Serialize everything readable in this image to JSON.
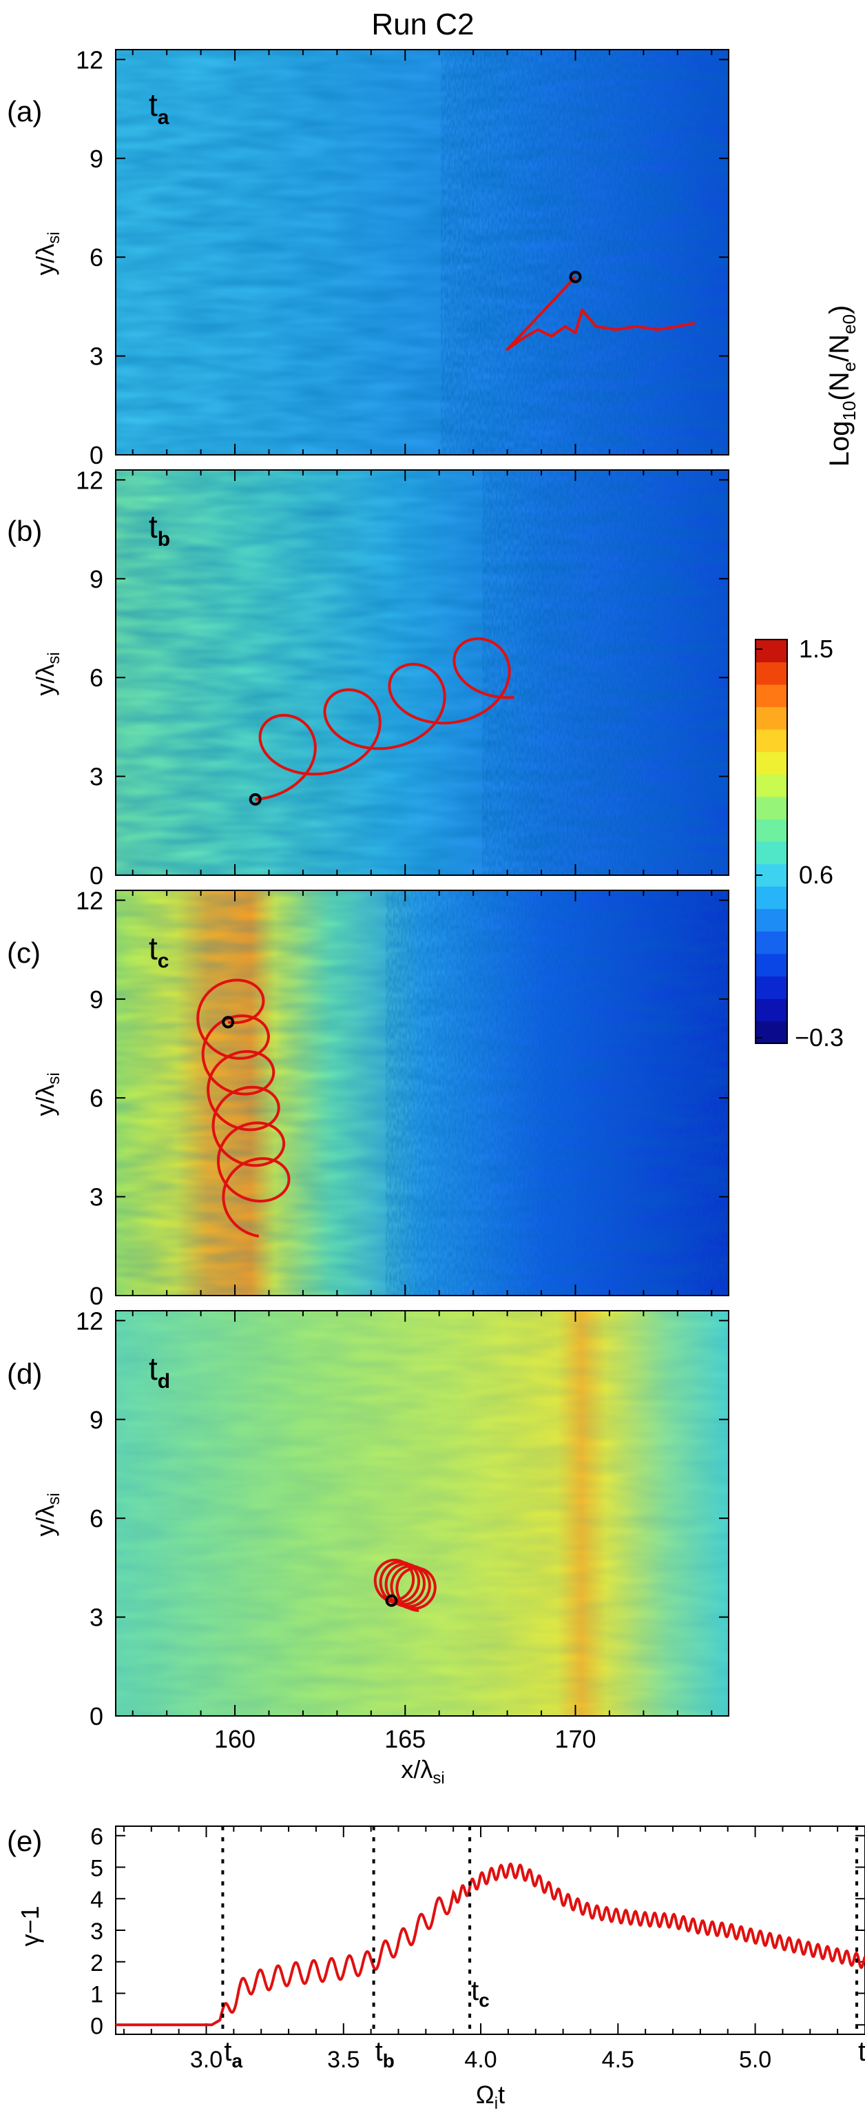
{
  "title": "Run C2",
  "colorbar": {
    "label_main": "Log",
    "label_sub": "10",
    "label_paren_open": "(N",
    "label_e": "e",
    "label_slash": "/N",
    "label_e0": "e0",
    "label_paren_close": ")",
    "ticks": [
      "1.5",
      "0.6",
      "−0.3"
    ],
    "colors": [
      "#0a0a8c",
      "#0a14b4",
      "#0a28d2",
      "#0a46e6",
      "#1464f0",
      "#1e8cf5",
      "#28b4f8",
      "#3cd2f0",
      "#50e6c8",
      "#6ef0a0",
      "#96f578",
      "#c8fa50",
      "#f0f032",
      "#ffd228",
      "#ffaa1e",
      "#ff7814",
      "#f0460a",
      "#c8140a"
    ]
  },
  "panels": [
    {
      "label": "(a)",
      "time_sub": "a",
      "time_main": "t"
    },
    {
      "label": "(b)",
      "time_sub": "b",
      "time_main": "t"
    },
    {
      "label": "(c)",
      "time_sub": "c",
      "time_main": "t"
    },
    {
      "label": "(d)",
      "time_sub": "d",
      "time_main": "t"
    }
  ],
  "map_yaxis": {
    "label_main": "y/λ",
    "label_sub": "si",
    "ticks": [
      "0",
      "3",
      "6",
      "9",
      "12"
    ]
  },
  "map_xaxis": {
    "label_main": "x/λ",
    "label_sub": "si",
    "ticks": [
      "160",
      "165",
      "170"
    ]
  },
  "chart_data": [
    {
      "type": "heatmap",
      "panel": "(a)",
      "xlim": [
        156.5,
        174.5
      ],
      "ylim": [
        0,
        12.3
      ],
      "particle_trajectory": {
        "color": "#e01010",
        "x": [
          168.0,
          168.4,
          168.9,
          169.3,
          169.7,
          170.0,
          170.2,
          170.6,
          171.2,
          171.8,
          172.4,
          173.0,
          173.5
        ],
        "y": [
          3.2,
          3.5,
          3.8,
          3.6,
          3.9,
          3.7,
          4.4,
          3.9,
          3.8,
          3.9,
          3.8,
          3.9,
          4.0
        ]
      },
      "marker": {
        "x": 170.0,
        "y": 5.4
      }
    },
    {
      "type": "heatmap",
      "panel": "(b)",
      "xlim": [
        156.5,
        174.5
      ],
      "ylim": [
        0,
        12.3
      ],
      "particle_trajectory": {
        "color": "#e01010",
        "cycles": 4,
        "x_start": 160.6,
        "x_end": 168.2,
        "y_start": 2.3,
        "y_end": 5.4,
        "radius_x": 1.25,
        "radius_y": 1.2
      },
      "marker": {
        "x": 160.6,
        "y": 2.3
      }
    },
    {
      "type": "heatmap",
      "panel": "(c)",
      "xlim": [
        156.5,
        174.5
      ],
      "ylim": [
        0,
        12.3
      ],
      "particle_trajectory": {
        "color": "#e01010",
        "cycles": 6,
        "x_start": 159.8,
        "x_end": 160.7,
        "y_start": 8.3,
        "y_end": 1.8,
        "radius_x": 1.0,
        "radius_y": 1.0
      },
      "marker": {
        "x": 159.8,
        "y": 8.3
      }
    },
    {
      "type": "heatmap",
      "panel": "(d)",
      "xlim": [
        156.5,
        174.5
      ],
      "ylim": [
        0,
        12.3
      ],
      "particle_trajectory": {
        "color": "#e01010",
        "cycles": 5,
        "x_start": 164.6,
        "x_end": 165.4,
        "y_start": 3.5,
        "y_end": 3.2,
        "radius_x": 0.6,
        "radius_y": 0.7
      },
      "marker": {
        "x": 164.6,
        "y": 3.5
      }
    },
    {
      "type": "line",
      "panel": "(e)",
      "xlabel_main": "Ω",
      "xlabel_sub": "i",
      "xlabel_tail": "t",
      "ylabel": "γ−1",
      "xlim": [
        2.67,
        5.4
      ],
      "ylim": [
        -0.3,
        6.3
      ],
      "xticks": [
        "3.0",
        "3.5",
        "4.0",
        "4.5",
        "5.0"
      ],
      "yticks": [
        "0",
        "1",
        "2",
        "3",
        "4",
        "5",
        "6"
      ],
      "series": [
        {
          "color": "#e01010",
          "x": [
            2.67,
            2.8,
            2.9,
            2.98,
            3.02,
            3.06,
            3.1,
            3.15,
            3.2,
            3.25,
            3.3,
            3.35,
            3.4,
            3.45,
            3.5,
            3.55,
            3.6,
            3.65,
            3.7,
            3.75,
            3.8,
            3.85,
            3.9,
            3.95,
            4.0,
            4.05,
            4.1,
            4.15,
            4.2,
            4.25,
            4.3,
            4.35,
            4.4,
            4.5,
            4.6,
            4.7,
            4.8,
            4.9,
            5.0,
            5.1,
            5.2,
            5.3,
            5.4
          ],
          "y": [
            0.0,
            0.0,
            0.0,
            0.0,
            0.0,
            0.2,
            0.8,
            1.3,
            1.4,
            1.5,
            1.6,
            1.65,
            1.7,
            1.75,
            1.8,
            1.9,
            2.0,
            2.3,
            2.6,
            2.9,
            3.3,
            3.7,
            4.0,
            4.3,
            4.6,
            4.8,
            4.9,
            4.85,
            4.6,
            4.3,
            4.0,
            3.8,
            3.6,
            3.45,
            3.35,
            3.3,
            3.1,
            3.0,
            2.8,
            2.6,
            2.4,
            2.2,
            2.0
          ],
          "oscillation_amplitude": 0.35
        }
      ],
      "vlines": [
        {
          "x": 3.06,
          "label_main": "t",
          "label_sub": "a"
        },
        {
          "x": 3.61,
          "label_main": "t",
          "label_sub": "b"
        },
        {
          "x": 3.96,
          "label_main": "t",
          "label_sub": "c"
        },
        {
          "x": 5.37,
          "label_main": "t",
          "label_sub": "d"
        }
      ]
    }
  ]
}
